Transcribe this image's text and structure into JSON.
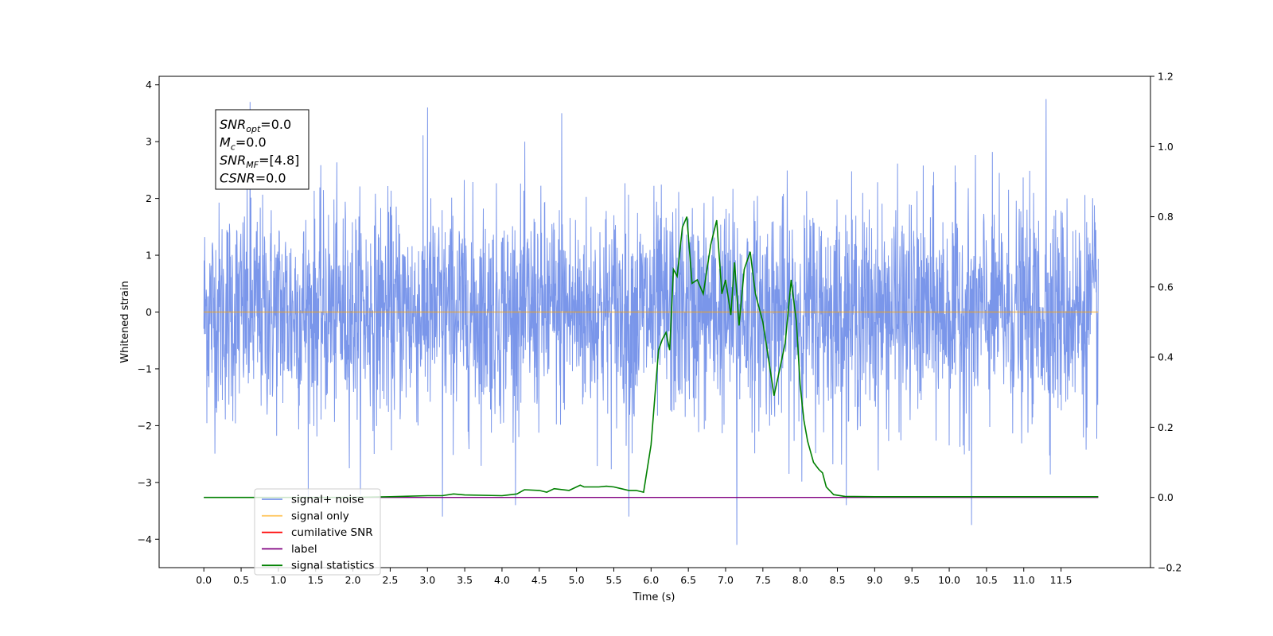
{
  "chart_data": {
    "type": "line",
    "xlabel": "Time (s)",
    "ylabel": "Whitened strain",
    "xlim": [
      -0.6,
      12.7
    ],
    "ylim": [
      -4.5,
      4.15
    ],
    "ylim_right": [
      -0.2,
      1.2
    ],
    "xticks": [
      "0.0",
      "0.5",
      "1.0",
      "1.5",
      "2.0",
      "2.5",
      "3.0",
      "3.5",
      "4.0",
      "4.5",
      "5.0",
      "5.5",
      "6.0",
      "6.5",
      "7.0",
      "7.5",
      "8.0",
      "8.5",
      "9.0",
      "9.5",
      "10.0",
      "10.5",
      "11.0",
      "11.5"
    ],
    "yticks_left": [
      "4",
      "3",
      "2",
      "1",
      "0",
      "−1",
      "−2",
      "−3",
      "−4"
    ],
    "yticks_right": [
      "1.2",
      "1.0",
      "0.8",
      "0.6",
      "0.4",
      "0.2",
      "0.0",
      "−0.2"
    ],
    "grid": false,
    "legend_position": "lower-left",
    "annotation": {
      "lines": [
        {
          "base": "SNR",
          "sub": "opt",
          "value": "=0.0"
        },
        {
          "base": "M",
          "sub": "c",
          "value": "=0.0"
        },
        {
          "base": "SNR",
          "sub": "MF",
          "value": "=[4.8]"
        },
        {
          "base": "CSNR",
          "sub": "",
          "value": "=0.0"
        }
      ]
    },
    "series": [
      {
        "name": "signal+ noise",
        "axis": "left",
        "color": "#4169e1",
        "x_range": [
          0.0,
          12.0
        ],
        "envelope_approx": [
          -2.2,
          2.2
        ],
        "peaks": [
          [
            0.62,
            3.7
          ],
          [
            3.0,
            3.6
          ],
          [
            4.8,
            3.5
          ],
          [
            7.15,
            -4.1
          ],
          [
            10.3,
            -3.75
          ],
          [
            11.3,
            3.75
          ],
          [
            5.7,
            -3.6
          ],
          [
            3.2,
            -3.6
          ]
        ]
      },
      {
        "name": "signal only",
        "axis": "left",
        "color": "#ffa500",
        "x": [
          0.0,
          12.0
        ],
        "y": [
          0.0,
          0.0
        ]
      },
      {
        "name": "cumilative SNR",
        "axis": "right",
        "color": "#ff0000",
        "x": [],
        "y": []
      },
      {
        "name": "label",
        "axis": "right",
        "color": "#800080",
        "x": [
          0.0,
          12.0
        ],
        "y": [
          0.0,
          0.0
        ]
      },
      {
        "name": "signal statistics",
        "axis": "right",
        "color": "#008000",
        "x": [
          0.0,
          0.5,
          1.0,
          1.5,
          2.0,
          2.5,
          3.0,
          3.2,
          3.35,
          3.5,
          4.0,
          4.2,
          4.3,
          4.5,
          4.6,
          4.7,
          4.9,
          5.05,
          5.1,
          5.2,
          5.3,
          5.4,
          5.5,
          5.6,
          5.7,
          5.8,
          5.9,
          6.0,
          6.1,
          6.15,
          6.2,
          6.25,
          6.3,
          6.35,
          6.42,
          6.48,
          6.55,
          6.62,
          6.7,
          6.8,
          6.88,
          6.95,
          7.0,
          7.07,
          7.12,
          7.18,
          7.25,
          7.33,
          7.4,
          7.5,
          7.58,
          7.65,
          7.72,
          7.8,
          7.88,
          7.95,
          8.0,
          8.05,
          8.1,
          8.18,
          8.25,
          8.3,
          8.35,
          8.45,
          8.6,
          9.0,
          9.5,
          10.0,
          10.5,
          11.0,
          11.5,
          12.0
        ],
        "y": [
          0.0,
          0.0,
          0.0,
          0.0,
          0.0,
          0.002,
          0.005,
          0.005,
          0.01,
          0.007,
          0.005,
          0.01,
          0.022,
          0.02,
          0.015,
          0.025,
          0.02,
          0.035,
          0.03,
          0.03,
          0.03,
          0.032,
          0.03,
          0.025,
          0.02,
          0.02,
          0.015,
          0.15,
          0.42,
          0.45,
          0.47,
          0.42,
          0.65,
          0.63,
          0.77,
          0.8,
          0.61,
          0.62,
          0.58,
          0.72,
          0.79,
          0.58,
          0.62,
          0.52,
          0.67,
          0.49,
          0.65,
          0.7,
          0.58,
          0.5,
          0.39,
          0.29,
          0.36,
          0.44,
          0.62,
          0.5,
          0.32,
          0.22,
          0.16,
          0.1,
          0.08,
          0.07,
          0.03,
          0.008,
          0.003,
          0.002,
          0.002,
          0.002,
          0.002,
          0.002,
          0.002,
          0.002
        ]
      }
    ]
  }
}
